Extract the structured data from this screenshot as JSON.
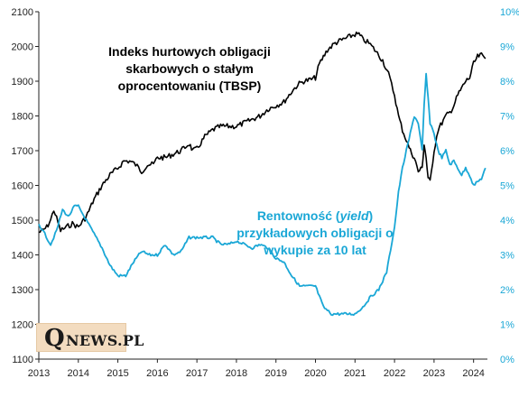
{
  "chart_data": {
    "type": "line",
    "title": "",
    "annotation_index": [
      "Indeks hurtowych  obligacji",
      "skarbowych  o stałym",
      "oprocentowaniu  (TBSP)"
    ],
    "annotation_yield": [
      "Rentowność (yield)",
      "przykładowych obligacji o",
      "wykupie za 10 lat"
    ],
    "annotation_yield_parts": {
      "before": "Rentowność (",
      "italic": "yield",
      "after": ")"
    },
    "x_ticks": [
      "2013",
      "2014",
      "2015",
      "2016",
      "2017",
      "2018",
      "2019",
      "2020",
      "2021",
      "2022",
      "2023",
      "2024"
    ],
    "y_left_ticks": [
      "1100",
      "1200",
      "1300",
      "1400",
      "1500",
      "1600",
      "1700",
      "1800",
      "1900",
      "2000",
      "2100"
    ],
    "y_right_ticks": [
      "0%",
      "1%",
      "2%",
      "3%",
      "4%",
      "5%",
      "6%",
      "7%",
      "8%",
      "9%",
      "10%"
    ],
    "xlim": [
      2013.0,
      2024.35
    ],
    "y_left_lim": [
      1100,
      2100
    ],
    "y_right_lim": [
      0,
      10
    ],
    "legend": "none",
    "grid": false,
    "series": [
      {
        "axis": "left",
        "color": "#000000",
        "x": [
          2013.0,
          2013.1,
          2013.2,
          2013.3,
          2013.38,
          2013.45,
          2013.55,
          2013.7,
          2013.85,
          2014.0,
          2014.2,
          2014.4,
          2014.6,
          2014.8,
          2015.0,
          2015.15,
          2015.3,
          2015.45,
          2015.6,
          2015.75,
          2015.9,
          2016.0,
          2016.2,
          2016.4,
          2016.6,
          2016.8,
          2016.9,
          2017.0,
          2017.2,
          2017.4,
          2017.6,
          2017.8,
          2018.0,
          2018.2,
          2018.4,
          2018.6,
          2018.8,
          2019.0,
          2019.2,
          2019.4,
          2019.55,
          2019.7,
          2019.9,
          2020.0,
          2020.1,
          2020.2,
          2020.3,
          2020.5,
          2020.7,
          2020.9,
          2021.0,
          2021.1,
          2021.2,
          2021.35,
          2021.5,
          2021.7,
          2021.85,
          2022.0,
          2022.1,
          2022.2,
          2022.3,
          2022.4,
          2022.5,
          2022.6,
          2022.7,
          2022.75,
          2022.8,
          2022.85,
          2022.9,
          2023.0,
          2023.1,
          2023.2,
          2023.3,
          2023.4,
          2023.5,
          2023.6,
          2023.7,
          2023.8,
          2023.9,
          2024.0,
          2024.1,
          2024.2,
          2024.3
        ],
        "y": [
          1465,
          1470,
          1480,
          1500,
          1530,
          1505,
          1470,
          1480,
          1490,
          1480,
          1510,
          1560,
          1600,
          1630,
          1650,
          1670,
          1670,
          1660,
          1640,
          1660,
          1660,
          1680,
          1680,
          1690,
          1700,
          1720,
          1700,
          1705,
          1740,
          1760,
          1770,
          1770,
          1770,
          1780,
          1790,
          1800,
          1820,
          1830,
          1840,
          1870,
          1890,
          1900,
          1905,
          1910,
          1950,
          1970,
          1990,
          2010,
          2020,
          2030,
          2035,
          2035,
          2020,
          2010,
          1990,
          1960,
          1920,
          1860,
          1800,
          1760,
          1730,
          1700,
          1680,
          1640,
          1650,
          1720,
          1680,
          1620,
          1610,
          1700,
          1760,
          1780,
          1800,
          1810,
          1830,
          1860,
          1880,
          1900,
          1910,
          1950,
          1970,
          1975,
          1965
        ]
      },
      {
        "axis": "right",
        "color": "#1aa7d6",
        "x": [
          2013.0,
          2013.15,
          2013.3,
          2013.45,
          2013.6,
          2013.75,
          2013.9,
          2014.0,
          2014.2,
          2014.4,
          2014.6,
          2014.8,
          2015.0,
          2015.2,
          2015.4,
          2015.6,
          2015.8,
          2016.0,
          2016.2,
          2016.4,
          2016.6,
          2016.8,
          2017.0,
          2017.2,
          2017.4,
          2017.6,
          2017.8,
          2018.0,
          2018.2,
          2018.4,
          2018.6,
          2018.8,
          2019.0,
          2019.2,
          2019.4,
          2019.6,
          2019.8,
          2020.0,
          2020.2,
          2020.4,
          2020.6,
          2020.8,
          2021.0,
          2021.2,
          2021.4,
          2021.6,
          2021.8,
          2022.0,
          2022.1,
          2022.2,
          2022.3,
          2022.4,
          2022.5,
          2022.6,
          2022.7,
          2022.75,
          2022.8,
          2022.85,
          2022.9,
          2023.0,
          2023.1,
          2023.2,
          2023.3,
          2023.4,
          2023.5,
          2023.6,
          2023.7,
          2023.8,
          2023.9,
          2024.0,
          2024.1,
          2024.2,
          2024.3
        ],
        "y": [
          3.9,
          3.6,
          3.3,
          3.7,
          4.3,
          4.1,
          4.4,
          4.4,
          4.0,
          3.6,
          3.2,
          2.7,
          2.4,
          2.4,
          2.8,
          3.1,
          3.0,
          3.0,
          3.3,
          3.0,
          3.1,
          3.5,
          3.5,
          3.5,
          3.5,
          3.3,
          3.3,
          3.4,
          3.3,
          3.2,
          3.3,
          3.2,
          2.9,
          2.8,
          2.4,
          2.1,
          2.1,
          2.1,
          1.5,
          1.3,
          1.3,
          1.3,
          1.3,
          1.5,
          1.8,
          2.0,
          2.5,
          3.8,
          4.8,
          5.5,
          6.0,
          6.5,
          7.0,
          6.8,
          6.0,
          7.3,
          8.2,
          7.5,
          6.8,
          6.5,
          6.0,
          5.8,
          6.0,
          5.6,
          5.7,
          5.5,
          5.3,
          5.5,
          5.3,
          5.0,
          5.1,
          5.2,
          5.5
        ]
      }
    ]
  },
  "logo": {
    "q": "Q",
    "rest": "NEWS.PL"
  }
}
